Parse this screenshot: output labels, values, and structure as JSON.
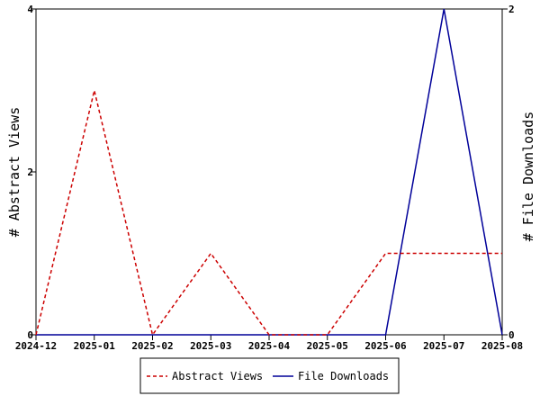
{
  "chart_data": {
    "type": "line",
    "x": [
      "2024-12",
      "2025-01",
      "2025-02",
      "2025-03",
      "2025-04",
      "2025-05",
      "2025-06",
      "2025-07",
      "2025-08"
    ],
    "y_left": {
      "label": "# Abstract Views",
      "ticks": [
        "0",
        "2",
        "4"
      ],
      "range": [
        0,
        4
      ]
    },
    "y_right": {
      "label": "# File Downloads",
      "ticks": [
        "0",
        "2"
      ],
      "range": [
        0,
        2
      ]
    },
    "series": [
      {
        "name": "Abstract Views",
        "axis": "left",
        "color": "#cc0000",
        "dashed": true,
        "values": [
          0,
          3,
          0,
          1,
          0,
          0,
          1,
          1,
          1
        ]
      },
      {
        "name": "File Downloads",
        "axis": "right",
        "color": "#000099",
        "dashed": false,
        "values": [
          0,
          0,
          0,
          0,
          0,
          0,
          0,
          2,
          0
        ]
      }
    ],
    "grid": false,
    "legend_position": "bottom"
  }
}
